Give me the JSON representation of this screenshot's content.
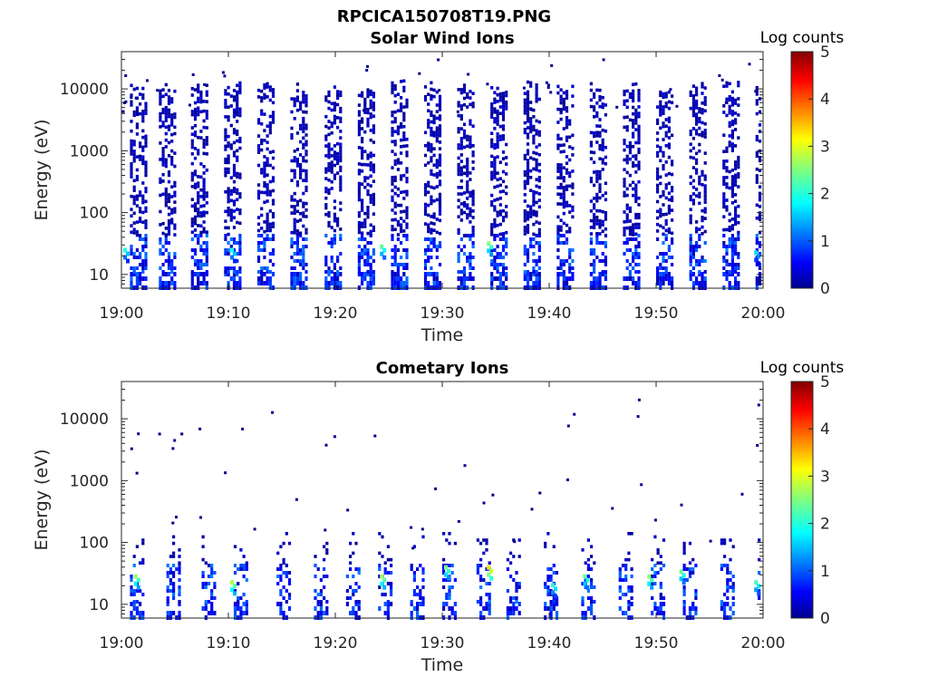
{
  "figure": {
    "title": "RPCICA150708T19.PNG",
    "background": "#ffffff"
  },
  "chart_data": [
    {
      "type": "heatmap",
      "title": "Solar Wind Ions",
      "xlabel": "Time",
      "ylabel": "Energy (eV)",
      "x_range": [
        "19:00",
        "20:00"
      ],
      "x_ticks": [
        "19:00",
        "19:10",
        "19:20",
        "19:30",
        "19:40",
        "19:50",
        "20:00"
      ],
      "ylim": [
        6,
        40000
      ],
      "y_scale": "log",
      "y_ticks": [
        {
          "value": 10,
          "label": "10"
        },
        {
          "value": 100,
          "label": "100"
        },
        {
          "value": 1000,
          "label": "1000"
        },
        {
          "value": 10000,
          "label": "10000"
        }
      ],
      "colorbar": {
        "label": "Log counts",
        "range": [
          0,
          5
        ],
        "ticks": [
          "0",
          "1",
          "2",
          "3",
          "4",
          "5"
        ],
        "colormap": "jet"
      },
      "sweep_start_minutes": [
        0.8,
        3.5,
        6.5,
        9.6,
        12.7,
        15.8,
        19.0,
        22.1,
        25.2,
        28.3,
        31.4,
        34.5,
        37.6,
        40.7,
        43.8,
        46.9,
        50.0,
        53.1,
        56.2,
        59.3
      ],
      "bright_bursts": [
        {
          "time": "19:00",
          "energy_eV": 22,
          "log_counts": 2.0
        },
        {
          "time": "19:10",
          "energy_eV": 22,
          "log_counts": 2.0
        },
        {
          "time": "19:24",
          "energy_eV": 25,
          "log_counts": 2.3
        },
        {
          "time": "19:34",
          "energy_eV": 28,
          "log_counts": 2.5
        },
        {
          "time": "19:59",
          "energy_eV": 20,
          "log_counts": 1.7
        }
      ]
    },
    {
      "type": "heatmap",
      "title": "Cometary Ions",
      "xlabel": "Time",
      "ylabel": "Energy (eV)",
      "x_range": [
        "19:00",
        "20:00"
      ],
      "x_ticks": [
        "19:00",
        "19:10",
        "19:20",
        "19:30",
        "19:40",
        "19:50",
        "20:00"
      ],
      "ylim": [
        6,
        40000
      ],
      "y_scale": "log",
      "y_ticks": [
        {
          "value": 10,
          "label": "10"
        },
        {
          "value": 100,
          "label": "100"
        },
        {
          "value": 1000,
          "label": "1000"
        },
        {
          "value": 10000,
          "label": "10000"
        }
      ],
      "colorbar": {
        "label": "Log counts",
        "range": [
          0,
          5
        ],
        "ticks": [
          "0",
          "1",
          "2",
          "3",
          "4",
          "5"
        ],
        "colormap": "jet"
      },
      "sweep_start_minutes": [
        0.8,
        4.2,
        7.5,
        10.5,
        14.5,
        18.0,
        21.0,
        24.0,
        27.0,
        30.0,
        33.2,
        36.0,
        39.5,
        43.0,
        46.5,
        49.5,
        52.5,
        56.0,
        59.5
      ],
      "bright_bursts": [
        {
          "time": "19:01",
          "energy_eV": 25,
          "log_counts": 2.6
        },
        {
          "time": "19:10",
          "energy_eV": 20,
          "log_counts": 2.7
        },
        {
          "time": "19:24",
          "energy_eV": 25,
          "log_counts": 2.7
        },
        {
          "time": "19:30",
          "energy_eV": 35,
          "log_counts": 2.5
        },
        {
          "time": "19:34",
          "energy_eV": 35,
          "log_counts": 3.3
        },
        {
          "time": "19:40",
          "energy_eV": 18,
          "log_counts": 2.1
        },
        {
          "time": "19:43",
          "energy_eV": 25,
          "log_counts": 2.4
        },
        {
          "time": "19:49",
          "energy_eV": 25,
          "log_counts": 2.6
        },
        {
          "time": "19:52",
          "energy_eV": 30,
          "log_counts": 2.4
        },
        {
          "time": "19:59",
          "energy_eV": 20,
          "log_counts": 2.2
        }
      ]
    }
  ]
}
